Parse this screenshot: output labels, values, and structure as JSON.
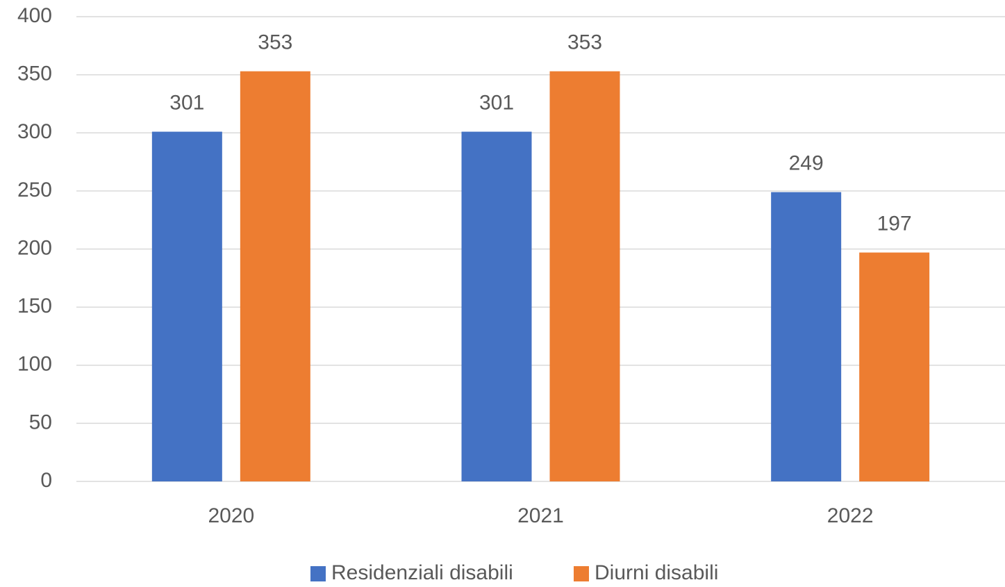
{
  "chart_data": {
    "type": "bar",
    "categories": [
      "2020",
      "2021",
      "2022"
    ],
    "series": [
      {
        "name": "Residenziali disabili",
        "color": "#4472c4",
        "values": [
          301,
          301,
          249
        ]
      },
      {
        "name": "Diurni disabili",
        "color": "#ed7d31",
        "values": [
          353,
          353,
          197
        ]
      }
    ],
    "ylim": [
      0,
      400
    ],
    "yticks": [
      0,
      50,
      100,
      150,
      200,
      250,
      300,
      350,
      400
    ],
    "grid": true,
    "legend": "bottom"
  }
}
